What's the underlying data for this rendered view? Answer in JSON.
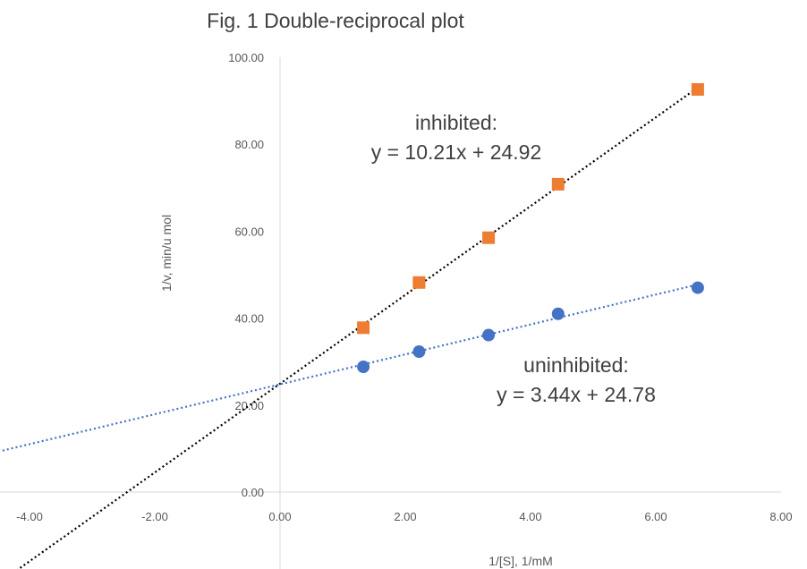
{
  "chart_data": {
    "type": "scatter",
    "title": "Fig. 1 Double-reciprocal plot",
    "xlabel": "1/[S], 1/mM",
    "ylabel": "1/v, min/u mol",
    "xlim": [
      -4.5,
      8.0
    ],
    "ylim": [
      -17.0,
      100.0
    ],
    "x_ticks": [
      "-4.00",
      "-2.00",
      "0.00",
      "2.00",
      "4.00",
      "6.00",
      "8.00"
    ],
    "x_tick_values": [
      -4,
      -2,
      0,
      2,
      4,
      6,
      8
    ],
    "y_ticks": [
      "0.00",
      "20.00",
      "40.00",
      "60.00",
      "80.00",
      "100.00"
    ],
    "y_tick_values": [
      0,
      20,
      40,
      60,
      80,
      100
    ],
    "grid": false,
    "series": [
      {
        "key": "inhibited",
        "marker": "square",
        "color": "#ED7D31",
        "trend_color": "#000000",
        "x": [
          1.33,
          2.22,
          3.33,
          4.44,
          6.67
        ],
        "y": [
          37.8,
          48.2,
          58.5,
          70.8,
          92.6
        ],
        "trendline": {
          "slope": 10.21,
          "intercept": 24.92,
          "x_range": [
            -4.5,
            6.67
          ]
        },
        "equation_label": [
          "inhibited:",
          "y = 10.21x + 24.92"
        ]
      },
      {
        "key": "uninhibited",
        "marker": "circle",
        "color": "#4472C4",
        "trend_color": "#4472C4",
        "x": [
          1.33,
          2.22,
          3.33,
          4.44,
          6.67
        ],
        "y": [
          28.8,
          32.3,
          36.1,
          41.0,
          47.0
        ],
        "trendline": {
          "slope": 3.44,
          "intercept": 24.78,
          "x_range": [
            -4.5,
            6.67
          ]
        },
        "equation_label": [
          "uninhibited:",
          "y = 3.44x + 24.78"
        ]
      }
    ]
  }
}
